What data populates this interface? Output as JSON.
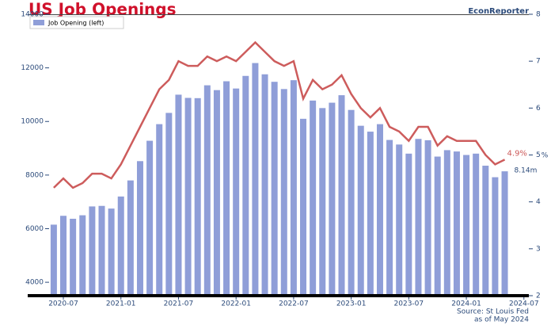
{
  "chart_data": {
    "type": "bar_line",
    "title": "US Job Openings",
    "brand": "EconReporter",
    "source": [
      "Source: St Louis Fed",
      "as of May 2024"
    ],
    "y2_label": "%",
    "x": [
      "2020-06",
      "2020-07",
      "2020-08",
      "2020-09",
      "2020-10",
      "2020-11",
      "2020-12",
      "2021-01",
      "2021-02",
      "2021-03",
      "2021-04",
      "2021-05",
      "2021-06",
      "2021-07",
      "2021-08",
      "2021-09",
      "2021-10",
      "2021-11",
      "2021-12",
      "2022-01",
      "2022-02",
      "2022-03",
      "2022-04",
      "2022-05",
      "2022-06",
      "2022-07",
      "2022-08",
      "2022-09",
      "2022-10",
      "2022-11",
      "2022-12",
      "2023-01",
      "2023-02",
      "2023-03",
      "2023-04",
      "2023-05",
      "2023-06",
      "2023-07",
      "2023-08",
      "2023-09",
      "2023-10",
      "2023-11",
      "2023-12",
      "2024-01",
      "2024-02",
      "2024-03",
      "2024-04",
      "2024-05"
    ],
    "xticks": [
      "2020-07",
      "2021-01",
      "2021-07",
      "2022-01",
      "2022-07",
      "2023-01",
      "2023-07",
      "2024-01",
      "2024-07"
    ],
    "series": [
      {
        "name": "Job Opening (left)",
        "color": "#8f9ed8",
        "kind": "bar",
        "values": [
          6150,
          6480,
          6370,
          6500,
          6830,
          6850,
          6750,
          7200,
          7800,
          8520,
          9280,
          9900,
          10320,
          11000,
          10880,
          10870,
          11350,
          11170,
          11500,
          11230,
          11700,
          12180,
          11760,
          11480,
          11210,
          11540,
          10100,
          10780,
          10500,
          10700,
          10980,
          10430,
          9840,
          9620,
          9900,
          9310,
          9140,
          8800,
          9350,
          9300,
          8690,
          8930,
          8880,
          8750,
          8800,
          8350,
          7920,
          8140
        ],
        "value_labels": [
          null,
          null,
          null,
          null,
          null,
          null,
          null,
          null,
          null,
          null,
          null,
          null,
          null,
          null,
          null,
          null,
          null,
          null,
          null,
          null,
          null,
          null,
          null,
          null,
          null,
          null,
          null,
          null,
          null,
          null,
          null,
          null,
          null,
          null,
          null,
          null,
          null,
          null,
          null,
          null,
          null,
          null,
          null,
          null,
          null,
          null,
          null,
          "8.14m"
        ]
      },
      {
        "color": "#cd5c5c",
        "kind": "line",
        "axis": "y2",
        "values": [
          4.3,
          4.5,
          4.3,
          4.4,
          4.6,
          4.6,
          4.5,
          4.8,
          5.2,
          5.6,
          6.0,
          6.4,
          6.6,
          7.0,
          6.9,
          6.9,
          7.1,
          7.0,
          7.1,
          7.0,
          7.2,
          7.4,
          7.2,
          7.0,
          6.9,
          7.0,
          6.2,
          6.6,
          6.4,
          6.5,
          6.7,
          6.3,
          6.0,
          5.8,
          6.0,
          5.6,
          5.5,
          5.3,
          5.6,
          5.6,
          5.2,
          5.4,
          5.3,
          5.3,
          5.3,
          5.0,
          4.8,
          4.9
        ],
        "value_labels": [
          null,
          null,
          null,
          null,
          null,
          null,
          null,
          null,
          null,
          null,
          null,
          null,
          null,
          null,
          null,
          null,
          null,
          null,
          null,
          null,
          null,
          null,
          null,
          null,
          null,
          null,
          null,
          null,
          null,
          null,
          null,
          null,
          null,
          null,
          null,
          null,
          null,
          null,
          null,
          null,
          null,
          null,
          null,
          null,
          null,
          null,
          null,
          "4.9%"
        ]
      }
    ],
    "ylim": [
      3500,
      14000
    ],
    "yticks": [
      4000,
      6000,
      8000,
      10000,
      12000,
      14000
    ],
    "y2lim": [
      2,
      8
    ],
    "y2ticks": [
      2,
      3,
      4,
      5,
      6,
      7,
      8
    ],
    "legend": "upper left"
  }
}
